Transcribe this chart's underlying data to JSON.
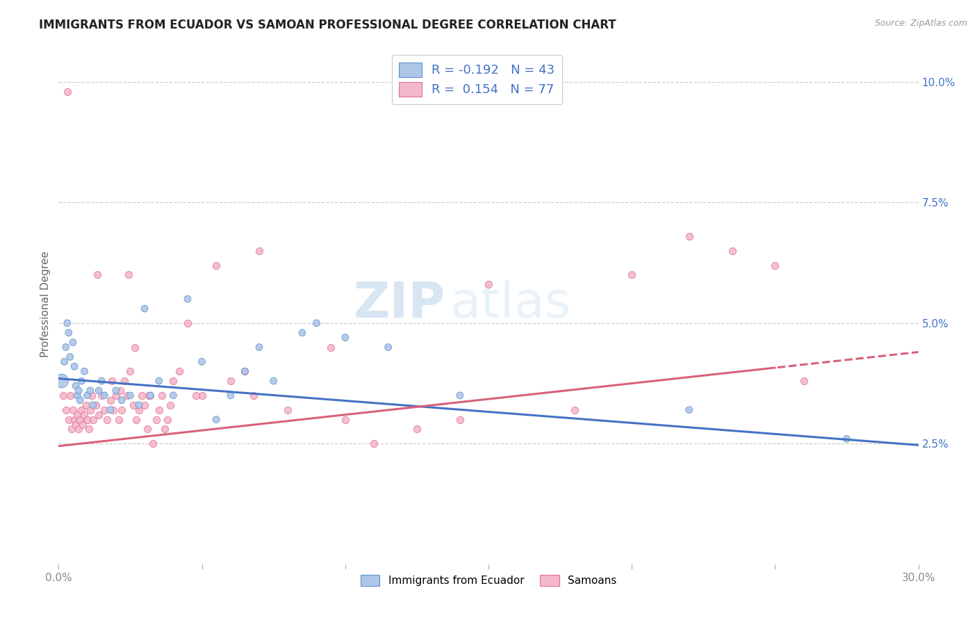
{
  "title": "IMMIGRANTS FROM ECUADOR VS SAMOAN PROFESSIONAL DEGREE CORRELATION CHART",
  "source": "Source: ZipAtlas.com",
  "ylabel": "Professional Degree",
  "right_yticks": [
    "2.5%",
    "5.0%",
    "7.5%",
    "10.0%"
  ],
  "right_ytick_vals": [
    2.5,
    5.0,
    7.5,
    10.0
  ],
  "xlim": [
    0.0,
    30.0
  ],
  "ylim": [
    0.0,
    10.8
  ],
  "legend_blue_label": "R = -0.192   N = 43",
  "legend_pink_label": "R =  0.154   N = 77",
  "blue_color": "#aec6e8",
  "pink_color": "#f4b8cb",
  "blue_edge": "#5b8fc9",
  "pink_edge": "#e07090",
  "trendline_blue_color": "#4472c4",
  "trendline_pink_color": "#d9607a",
  "blue_intercept": 3.85,
  "blue_slope": -0.046,
  "pink_intercept": 2.45,
  "pink_slope": 0.065,
  "pink_solid_end": 25.0,
  "ecuador_x": [
    0.1,
    0.2,
    0.25,
    0.3,
    0.35,
    0.4,
    0.5,
    0.55,
    0.6,
    0.65,
    0.7,
    0.75,
    0.8,
    0.9,
    1.0,
    1.1,
    1.2,
    1.4,
    1.5,
    1.6,
    1.8,
    2.0,
    2.2,
    2.5,
    2.8,
    3.0,
    3.2,
    3.5,
    4.0,
    4.5,
    5.0,
    5.5,
    6.0,
    6.5,
    7.0,
    7.5,
    8.5,
    9.0,
    10.0,
    11.5,
    14.0,
    22.0,
    27.5
  ],
  "ecuador_y": [
    3.8,
    4.2,
    4.5,
    5.0,
    4.8,
    4.3,
    4.6,
    4.1,
    3.7,
    3.5,
    3.6,
    3.4,
    3.8,
    4.0,
    3.5,
    3.6,
    3.3,
    3.6,
    3.8,
    3.5,
    3.2,
    3.6,
    3.4,
    3.5,
    3.3,
    5.3,
    3.5,
    3.8,
    3.5,
    5.5,
    4.2,
    3.0,
    3.5,
    4.0,
    4.5,
    3.8,
    4.8,
    5.0,
    4.7,
    4.5,
    3.5,
    3.2,
    2.6
  ],
  "ecuador_sizes": [
    200,
    50,
    50,
    50,
    50,
    50,
    50,
    50,
    50,
    50,
    50,
    50,
    50,
    50,
    50,
    50,
    50,
    50,
    50,
    50,
    50,
    50,
    50,
    50,
    50,
    50,
    50,
    50,
    50,
    50,
    50,
    50,
    50,
    50,
    50,
    50,
    50,
    50,
    50,
    50,
    50,
    50,
    50
  ],
  "samoan_x": [
    0.15,
    0.25,
    0.35,
    0.4,
    0.45,
    0.5,
    0.55,
    0.6,
    0.65,
    0.7,
    0.75,
    0.8,
    0.85,
    0.9,
    0.95,
    1.0,
    1.05,
    1.1,
    1.15,
    1.2,
    1.3,
    1.4,
    1.5,
    1.6,
    1.7,
    1.8,
    1.85,
    1.9,
    2.0,
    2.1,
    2.15,
    2.2,
    2.3,
    2.4,
    2.5,
    2.6,
    2.65,
    2.7,
    2.8,
    2.9,
    3.0,
    3.1,
    3.2,
    3.3,
    3.4,
    3.5,
    3.6,
    3.7,
    3.8,
    3.9,
    4.0,
    4.2,
    4.5,
    5.0,
    5.5,
    6.0,
    6.5,
    7.0,
    8.0,
    9.5,
    10.0,
    11.0,
    12.5,
    14.0,
    15.0,
    18.0,
    20.0,
    22.0,
    23.5,
    25.0,
    26.0,
    0.3,
    1.35,
    2.45,
    3.15,
    4.8,
    6.8
  ],
  "samoan_y": [
    3.5,
    3.2,
    3.0,
    3.5,
    2.8,
    3.2,
    3.0,
    2.9,
    3.1,
    2.8,
    3.0,
    3.2,
    2.9,
    3.1,
    3.3,
    3.0,
    2.8,
    3.2,
    3.5,
    3.0,
    3.3,
    3.1,
    3.5,
    3.2,
    3.0,
    3.4,
    3.8,
    3.2,
    3.5,
    3.0,
    3.6,
    3.2,
    3.8,
    3.5,
    4.0,
    3.3,
    4.5,
    3.0,
    3.2,
    3.5,
    3.3,
    2.8,
    3.5,
    2.5,
    3.0,
    3.2,
    3.5,
    2.8,
    3.0,
    3.3,
    3.8,
    4.0,
    5.0,
    3.5,
    6.2,
    3.8,
    4.0,
    6.5,
    3.2,
    4.5,
    3.0,
    2.5,
    2.8,
    3.0,
    5.8,
    3.2,
    6.0,
    6.8,
    6.5,
    6.2,
    3.8,
    9.8,
    6.0,
    6.0,
    3.5,
    3.5,
    3.5
  ],
  "watermark_zip": "ZIP",
  "watermark_atlas": "atlas",
  "bg_color": "#ffffff",
  "grid_color": "#cccccc"
}
